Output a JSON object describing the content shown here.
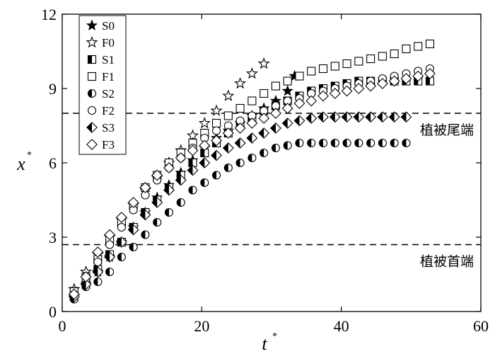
{
  "chart_data": {
    "type": "scatter",
    "title": "",
    "xlabel": "t",
    "xlabel_superscript": "*",
    "ylabel": "x",
    "ylabel_superscript": "*",
    "xlim": [
      0,
      60
    ],
    "ylim": [
      0,
      12
    ],
    "xticks": [
      0,
      20,
      40,
      60
    ],
    "yticks": [
      0,
      3,
      6,
      9,
      12
    ],
    "xtick_labels": [
      "0",
      "20",
      "40",
      "60"
    ],
    "ytick_labels": [
      "0",
      "3",
      "6",
      "9",
      "12"
    ],
    "legend_position": "top-left",
    "reference_lines": [
      {
        "y": 8.0,
        "label": "植被尾端",
        "style": "dashed"
      },
      {
        "y": 2.7,
        "label": "植被首端",
        "style": "dashed"
      }
    ],
    "series": [
      {
        "name": "S0",
        "marker": "star-filled",
        "x": [
          1.7,
          3.4,
          5.1,
          6.8,
          8.5,
          10.2,
          11.9,
          13.6,
          15.3,
          17.0,
          18.7,
          20.4,
          22.1,
          23.8,
          25.5,
          27.2,
          28.9,
          30.6,
          32.3,
          33.3
        ],
        "y": [
          0.6,
          1.1,
          1.6,
          2.2,
          2.8,
          3.4,
          4.0,
          4.6,
          5.1,
          5.6,
          6.1,
          6.6,
          7.0,
          7.3,
          7.6,
          7.9,
          8.2,
          8.5,
          8.9,
          9.5
        ]
      },
      {
        "name": "F0",
        "marker": "star-open",
        "x": [
          1.7,
          3.4,
          5.1,
          6.8,
          8.5,
          10.2,
          11.9,
          13.6,
          15.3,
          17.0,
          18.7,
          20.4,
          22.1,
          23.8,
          25.5,
          27.2,
          28.9
        ],
        "y": [
          0.9,
          1.6,
          2.3,
          3.0,
          3.7,
          4.3,
          4.9,
          5.4,
          6.0,
          6.5,
          7.1,
          7.6,
          8.1,
          8.7,
          9.2,
          9.6,
          10.0
        ]
      },
      {
        "name": "S1",
        "marker": "square-half",
        "x": [
          1.7,
          3.4,
          5.1,
          6.8,
          8.5,
          10.2,
          11.9,
          13.6,
          15.3,
          17.0,
          18.7,
          20.4,
          22.1,
          23.8,
          25.5,
          27.2,
          28.9,
          30.6,
          32.3,
          34.0,
          35.7,
          37.4,
          39.1,
          40.8,
          42.5,
          44.2,
          45.9,
          47.6,
          49.3,
          51.0,
          52.7
        ],
        "y": [
          0.6,
          1.1,
          1.7,
          2.3,
          2.8,
          3.4,
          4.0,
          4.5,
          5.0,
          5.5,
          6.0,
          6.4,
          6.8,
          7.2,
          7.5,
          7.8,
          8.1,
          8.3,
          8.5,
          8.7,
          8.9,
          9.0,
          9.1,
          9.2,
          9.3,
          9.3,
          9.3,
          9.3,
          9.3,
          9.3,
          9.3
        ]
      },
      {
        "name": "F1",
        "marker": "square-open",
        "x": [
          1.7,
          3.4,
          5.1,
          6.8,
          8.5,
          10.2,
          11.9,
          13.6,
          15.3,
          17.0,
          18.7,
          20.4,
          22.1,
          23.8,
          25.5,
          27.2,
          28.9,
          30.6,
          32.3,
          34.0,
          35.7,
          37.4,
          39.1,
          40.8,
          42.5,
          44.2,
          45.9,
          47.6,
          49.3,
          51.0,
          52.7
        ],
        "y": [
          0.8,
          1.4,
          2.1,
          2.9,
          3.6,
          4.3,
          5.0,
          5.5,
          6.0,
          6.4,
          6.8,
          7.2,
          7.6,
          7.9,
          8.2,
          8.5,
          8.8,
          9.1,
          9.3,
          9.5,
          9.7,
          9.8,
          9.9,
          10.0,
          10.1,
          10.2,
          10.3,
          10.4,
          10.6,
          10.7,
          10.8
        ]
      },
      {
        "name": "S2",
        "marker": "circle-half",
        "x": [
          1.7,
          3.4,
          5.1,
          6.8,
          8.5,
          10.2,
          11.9,
          13.6,
          15.3,
          17.0,
          18.7,
          20.4,
          22.1,
          23.8,
          25.5,
          27.2,
          28.9,
          30.6,
          32.3,
          34.0,
          35.7,
          37.4,
          39.1,
          40.8,
          42.5,
          44.2,
          45.9,
          47.6,
          49.3
        ],
        "y": [
          0.5,
          1.0,
          1.2,
          1.6,
          2.2,
          2.6,
          3.1,
          3.6,
          4.0,
          4.4,
          4.9,
          5.2,
          5.5,
          5.8,
          6.0,
          6.2,
          6.4,
          6.6,
          6.7,
          6.8,
          6.8,
          6.8,
          6.8,
          6.8,
          6.8,
          6.8,
          6.8,
          6.8,
          6.8
        ]
      },
      {
        "name": "F2",
        "marker": "circle-open",
        "x": [
          1.7,
          3.4,
          5.1,
          6.8,
          8.5,
          10.2,
          11.9,
          13.6,
          15.3,
          17.0,
          18.7,
          20.4,
          22.1,
          23.8,
          25.5,
          27.2,
          28.9,
          30.6,
          32.3,
          34.0,
          35.7,
          37.4,
          39.1,
          40.8,
          42.5,
          44.2,
          45.9,
          47.6,
          49.3,
          51.0,
          52.7
        ],
        "y": [
          0.7,
          1.3,
          2.0,
          2.7,
          3.4,
          4.1,
          4.7,
          5.3,
          5.8,
          6.2,
          6.6,
          7.0,
          7.3,
          7.5,
          7.7,
          7.9,
          8.1,
          8.3,
          8.5,
          8.6,
          8.8,
          8.9,
          9.0,
          9.1,
          9.2,
          9.3,
          9.4,
          9.5,
          9.6,
          9.7,
          9.8
        ]
      },
      {
        "name": "S3",
        "marker": "diamond-half",
        "x": [
          1.7,
          3.4,
          5.1,
          6.8,
          8.5,
          10.2,
          11.9,
          13.6,
          15.3,
          17.0,
          18.7,
          20.4,
          22.1,
          23.8,
          25.5,
          27.2,
          28.9,
          30.6,
          32.3,
          34.0,
          35.7,
          37.4,
          39.1,
          40.8,
          42.5,
          44.2,
          45.9,
          47.6,
          49.3
        ],
        "y": [
          0.6,
          1.1,
          1.6,
          2.2,
          2.8,
          3.3,
          3.9,
          4.4,
          4.9,
          5.3,
          5.7,
          6.0,
          6.3,
          6.6,
          6.8,
          7.0,
          7.2,
          7.4,
          7.6,
          7.7,
          7.8,
          7.85,
          7.85,
          7.85,
          7.85,
          7.85,
          7.85,
          7.85,
          7.85
        ]
      },
      {
        "name": "F3",
        "marker": "diamond-open",
        "x": [
          1.7,
          3.4,
          5.1,
          6.8,
          8.5,
          10.2,
          11.9,
          13.6,
          15.3,
          17.0,
          18.7,
          20.4,
          22.1,
          23.8,
          25.5,
          27.2,
          28.9,
          30.6,
          32.3,
          34.0,
          35.7,
          37.4,
          39.1,
          40.8,
          42.5,
          44.2,
          45.9,
          47.6,
          49.3,
          51.0,
          52.7
        ],
        "y": [
          0.7,
          1.4,
          2.4,
          3.1,
          3.8,
          4.4,
          5.0,
          5.5,
          5.8,
          6.2,
          6.5,
          6.7,
          6.9,
          7.2,
          7.4,
          7.6,
          7.8,
          8.0,
          8.2,
          8.4,
          8.5,
          8.7,
          8.8,
          8.9,
          9.0,
          9.1,
          9.2,
          9.3,
          9.4,
          9.5,
          9.6
        ]
      }
    ]
  }
}
